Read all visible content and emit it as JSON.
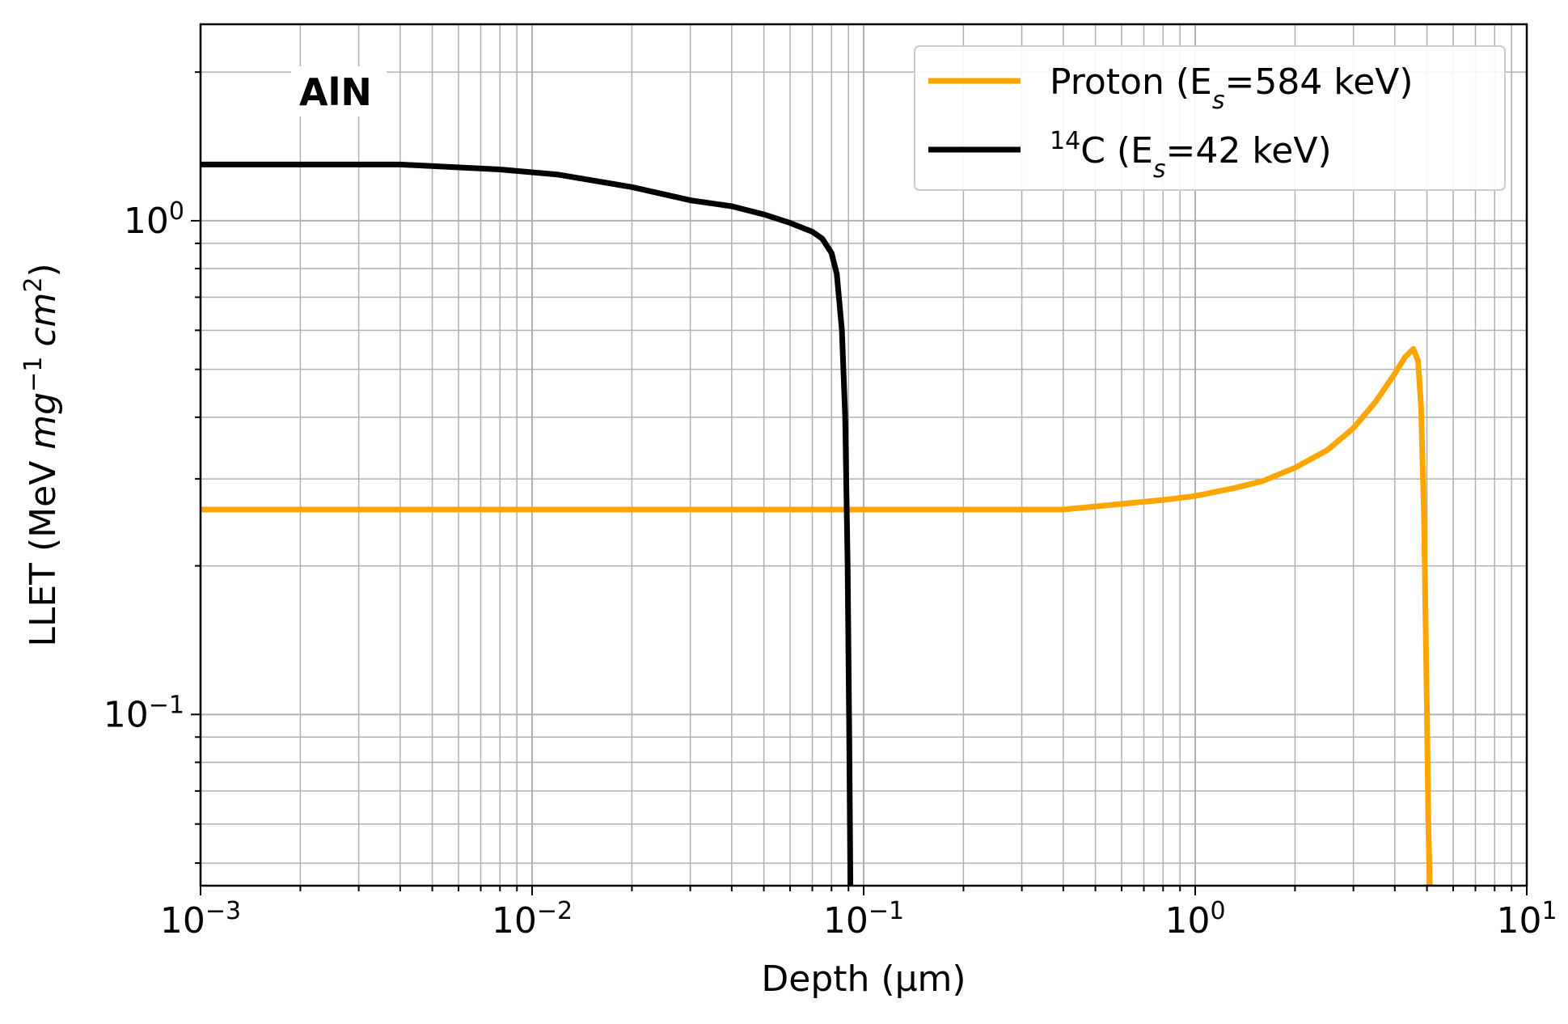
{
  "chart_data": {
    "type": "line",
    "annotation": "AlN",
    "xlabel": "Depth (μm)",
    "ylabel": {
      "prefix": "LLET (MeV ",
      "mg": "mg",
      "mg_exp": "−1",
      "cm": "cm",
      "cm_exp": "2",
      "suffix": ")"
    },
    "x_scale": "log",
    "y_scale": "log",
    "xlim": [
      0.001,
      10
    ],
    "ylim": [
      0.045,
      2.5
    ],
    "grid": true,
    "legend_position": "top-right",
    "x_ticks": [
      {
        "value": 0.001,
        "base": "10",
        "exp": "−3"
      },
      {
        "value": 0.01,
        "base": "10",
        "exp": "−2"
      },
      {
        "value": 0.1,
        "base": "10",
        "exp": "−1"
      },
      {
        "value": 1,
        "base": "10",
        "exp": "0"
      },
      {
        "value": 10,
        "base": "10",
        "exp": "1"
      }
    ],
    "y_ticks": [
      {
        "value": 0.1,
        "base": "10",
        "exp": "−1"
      },
      {
        "value": 1,
        "base": "10",
        "exp": "0"
      }
    ],
    "series": [
      {
        "name_main": "Proton (E",
        "name_sub": "s",
        "name_tail": "=584 keV)",
        "color": "#FFA500",
        "x": [
          0.001,
          0.01,
          0.1,
          0.2,
          0.4,
          0.6,
          0.8,
          1.0,
          1.3,
          1.6,
          2.0,
          2.5,
          3.0,
          3.5,
          4.0,
          4.3,
          4.55,
          4.7,
          4.8,
          4.9,
          5.0,
          5.05,
          5.1
        ],
        "y": [
          0.26,
          0.26,
          0.26,
          0.26,
          0.26,
          0.267,
          0.272,
          0.277,
          0.287,
          0.297,
          0.316,
          0.343,
          0.38,
          0.43,
          0.49,
          0.53,
          0.55,
          0.52,
          0.42,
          0.25,
          0.1,
          0.06,
          0.045
        ]
      },
      {
        "name_main": "C (E",
        "name_pre_sup": "14",
        "name_sub": "s",
        "name_tail": "=42 keV)",
        "color": "#000000",
        "x": [
          0.001,
          0.002,
          0.004,
          0.008,
          0.012,
          0.02,
          0.03,
          0.04,
          0.05,
          0.06,
          0.07,
          0.075,
          0.08,
          0.083,
          0.086,
          0.088,
          0.0895,
          0.0905,
          0.091,
          0.0912
        ],
        "y": [
          1.3,
          1.3,
          1.3,
          1.27,
          1.24,
          1.17,
          1.1,
          1.07,
          1.03,
          0.99,
          0.95,
          0.92,
          0.86,
          0.78,
          0.6,
          0.4,
          0.2,
          0.09,
          0.055,
          0.045
        ]
      }
    ]
  }
}
